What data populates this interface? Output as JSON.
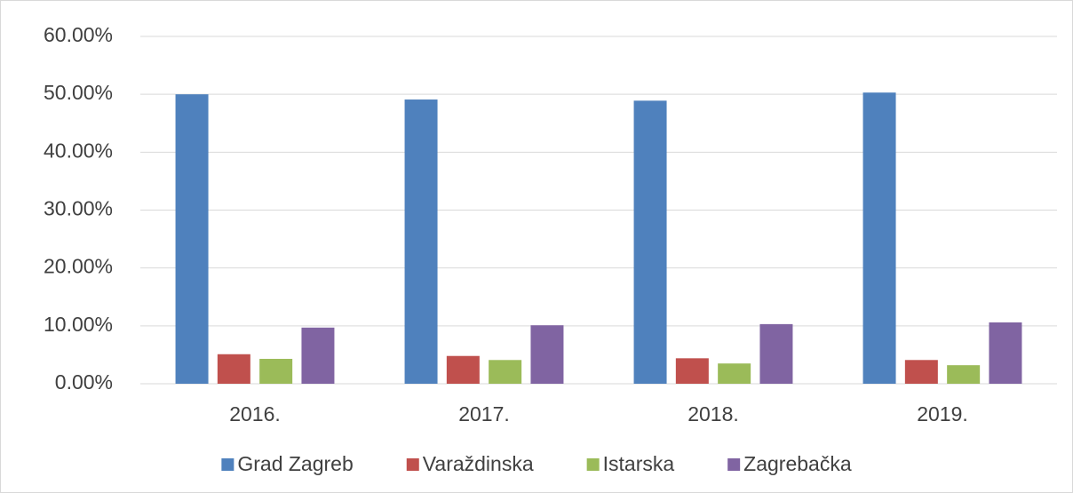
{
  "chart_data": {
    "type": "bar",
    "categories": [
      "2016.",
      "2017.",
      "2018.",
      "2019."
    ],
    "series": [
      {
        "name": "Grad Zagreb",
        "color": "#4f81bd",
        "values": [
          50.0,
          49.1,
          48.9,
          50.3
        ]
      },
      {
        "name": "Varaždinska",
        "color": "#c0504d",
        "values": [
          5.1,
          4.8,
          4.4,
          4.1
        ]
      },
      {
        "name": "Istarska",
        "color": "#9bbb59",
        "values": [
          4.3,
          4.1,
          3.5,
          3.2
        ]
      },
      {
        "name": "Zagrebačka",
        "color": "#8064a2",
        "values": [
          9.7,
          10.1,
          10.3,
          10.6
        ]
      }
    ],
    "ylim": [
      0,
      60
    ],
    "yticks": [
      {
        "value": 0,
        "label": "0.00%"
      },
      {
        "value": 10,
        "label": "10.00%"
      },
      {
        "value": 20,
        "label": "20.00%"
      },
      {
        "value": 30,
        "label": "30.00%"
      },
      {
        "value": 40,
        "label": "40.00%"
      },
      {
        "value": 50,
        "label": "50.00%"
      },
      {
        "value": 60,
        "label": "60.00%"
      }
    ],
    "grid": true,
    "legend": "bottom"
  }
}
